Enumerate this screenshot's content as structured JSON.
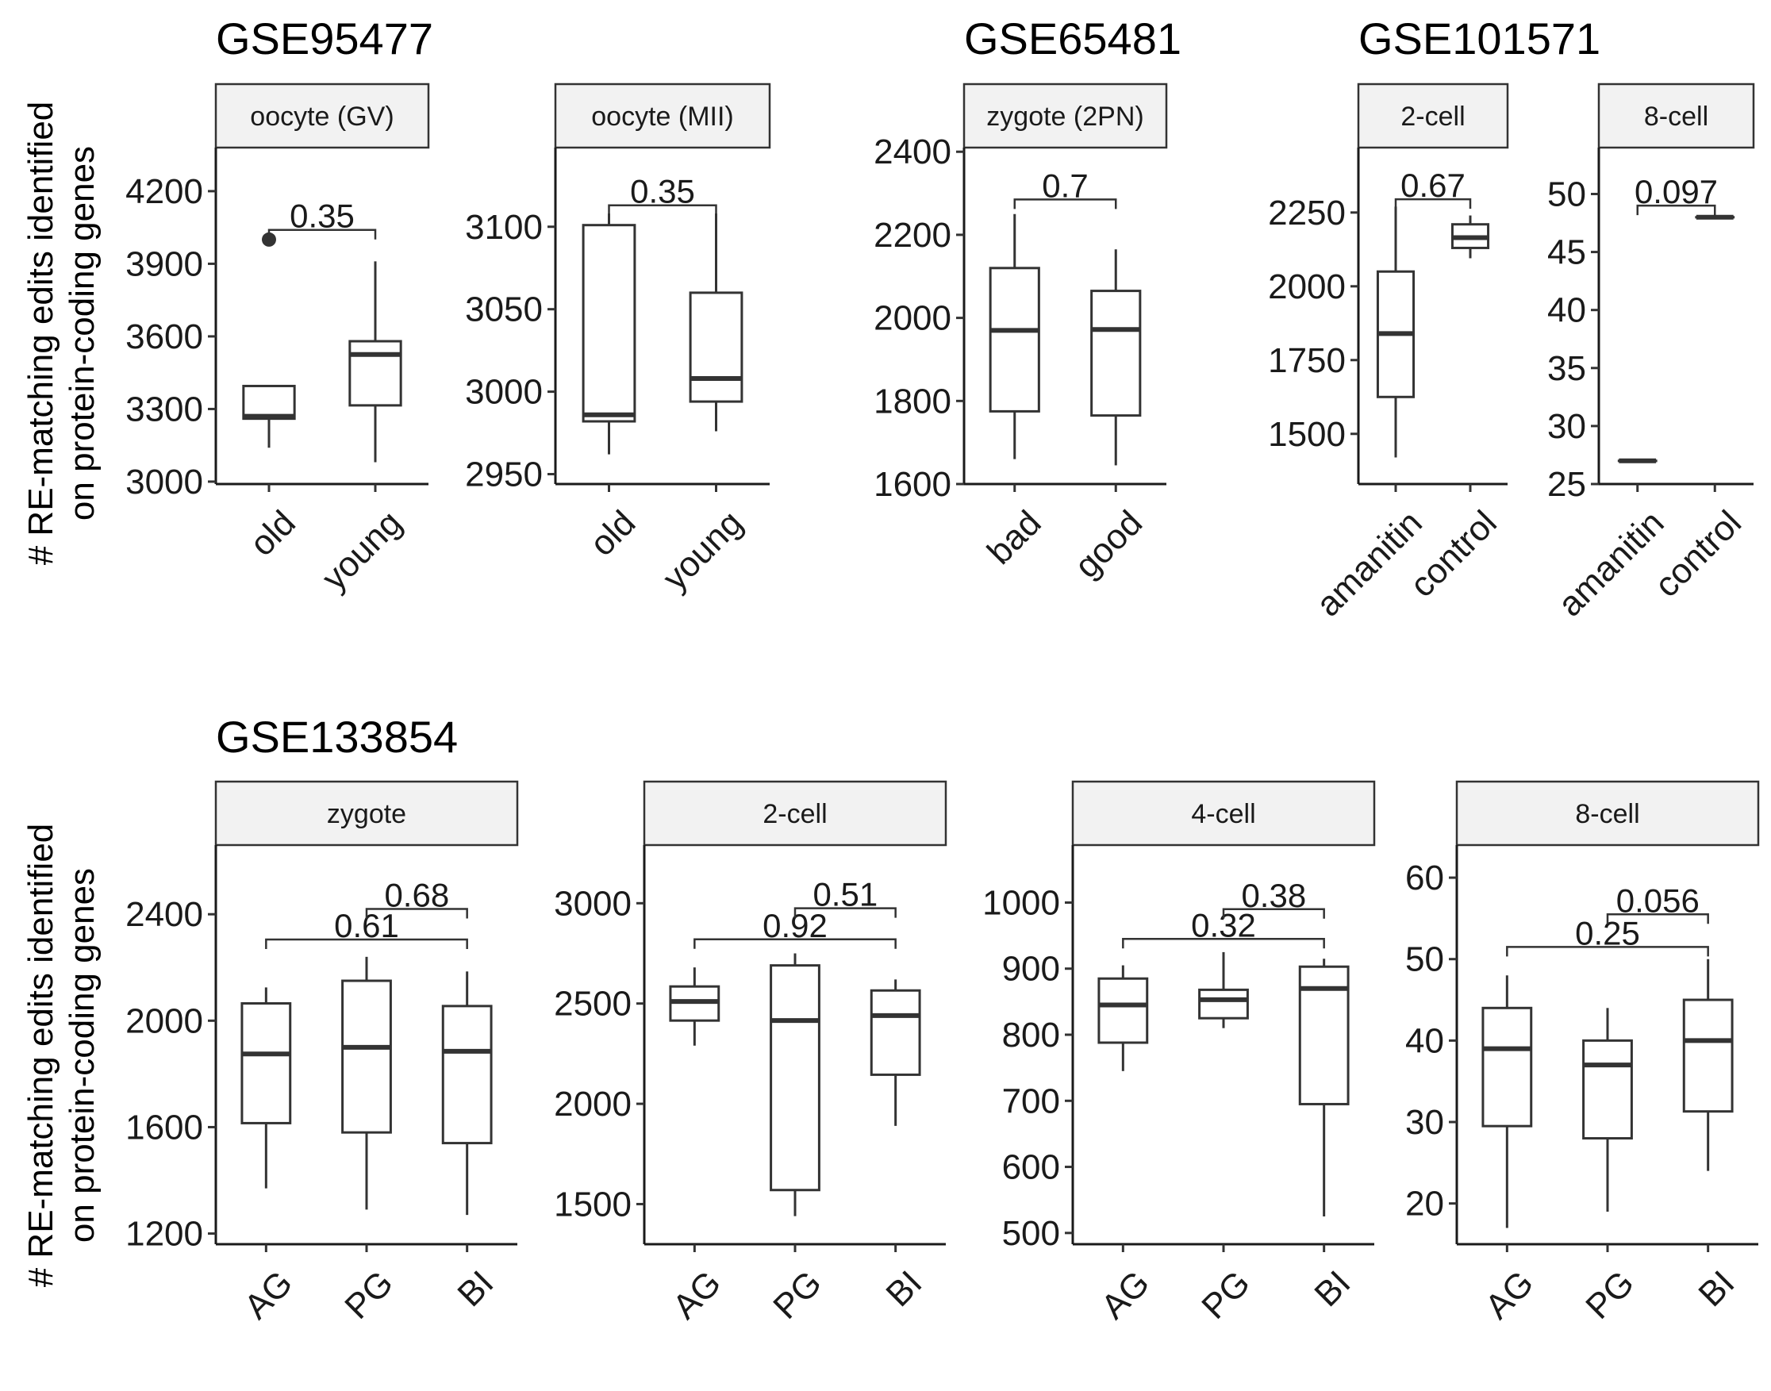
{
  "y_axis_label": {
    "line1": "# RE-matching edits identified",
    "line2": "on protein-coding genes"
  },
  "chart_data": [
    {
      "type": "box",
      "title": "GSE95477",
      "strip": "oocyte (GV)",
      "categories": [
        "old",
        "young"
      ],
      "ylim": [
        2990,
        4380
      ],
      "yticks": [
        3000,
        3300,
        3600,
        3900,
        4200
      ],
      "boxes": [
        {
          "min": 3140,
          "q1": 3260,
          "median": 3270,
          "q3": 3395,
          "max": 3395,
          "outliers": [
            4000
          ]
        },
        {
          "min": 3080,
          "q1": 3315,
          "median": 3525,
          "q3": 3580,
          "max": 3910,
          "outliers": []
        }
      ],
      "comparisons": [
        {
          "from": 0,
          "to": 1,
          "y": 4040,
          "label": "0.35"
        }
      ]
    },
    {
      "type": "box",
      "title": "",
      "strip": "oocyte (MII)",
      "categories": [
        "old",
        "young"
      ],
      "ylim": [
        2944,
        3148
      ],
      "yticks": [
        2950,
        3000,
        3050,
        3100
      ],
      "boxes": [
        {
          "min": 2962,
          "q1": 2982,
          "median": 2986,
          "q3": 3101,
          "max": 3108,
          "outliers": []
        },
        {
          "min": 2976,
          "q1": 2994,
          "median": 3008,
          "q3": 3060,
          "max": 3108,
          "outliers": []
        }
      ],
      "comparisons": [
        {
          "from": 0,
          "to": 1,
          "y": 3113,
          "label": "0.35"
        }
      ]
    },
    {
      "type": "box",
      "title": "GSE65481",
      "strip": "zygote (2PN)",
      "categories": [
        "bad",
        "good"
      ],
      "ylim": [
        1600,
        2410
      ],
      "yticks": [
        1600,
        1800,
        2000,
        2200,
        2400
      ],
      "boxes": [
        {
          "min": 1660,
          "q1": 1775,
          "median": 1970,
          "q3": 2120,
          "max": 2250,
          "outliers": []
        },
        {
          "min": 1645,
          "q1": 1765,
          "median": 1972,
          "q3": 2065,
          "max": 2165,
          "outliers": []
        }
      ],
      "comparisons": [
        {
          "from": 0,
          "to": 1,
          "y": 2285,
          "label": "0.7"
        }
      ]
    },
    {
      "type": "box",
      "title": "GSE101571",
      "strip": "2-cell",
      "categories": [
        "amanitin",
        "control"
      ],
      "ylim": [
        1330,
        2470
      ],
      "yticks": [
        1500,
        1750,
        2000,
        2250
      ],
      "boxes": [
        {
          "min": 1420,
          "q1": 1625,
          "median": 1840,
          "q3": 2050,
          "max": 2270,
          "outliers": []
        },
        {
          "min": 2095,
          "q1": 2130,
          "median": 2165,
          "q3": 2210,
          "max": 2240,
          "outliers": []
        }
      ],
      "comparisons": [
        {
          "from": 0,
          "to": 1,
          "y": 2295,
          "label": "0.67"
        }
      ]
    },
    {
      "type": "box",
      "title": "",
      "strip": "8-cell",
      "categories": [
        "amanitin",
        "control"
      ],
      "ylim": [
        25,
        54
      ],
      "yticks": [
        25,
        30,
        35,
        40,
        45,
        50
      ],
      "boxes": [
        {
          "min": 27,
          "q1": 27,
          "median": 27,
          "q3": 27,
          "max": 27,
          "outliers": []
        },
        {
          "min": 48,
          "q1": 48,
          "median": 48,
          "q3": 48,
          "max": 48,
          "outliers": []
        }
      ],
      "comparisons": [
        {
          "from": 0,
          "to": 1,
          "y": 49,
          "label": "0.097"
        }
      ]
    },
    {
      "type": "box",
      "title": "GSE133854",
      "strip": "zygote",
      "categories": [
        "AG",
        "PG",
        "BI"
      ],
      "ylim": [
        1160,
        2660
      ],
      "yticks": [
        1200,
        1600,
        2000,
        2400
      ],
      "boxes": [
        {
          "min": 1370,
          "q1": 1615,
          "median": 1875,
          "q3": 2065,
          "max": 2125,
          "outliers": []
        },
        {
          "min": 1290,
          "q1": 1580,
          "median": 1900,
          "q3": 2150,
          "max": 2240,
          "outliers": []
        },
        {
          "min": 1270,
          "q1": 1540,
          "median": 1885,
          "q3": 2055,
          "max": 2185,
          "outliers": []
        }
      ],
      "comparisons": [
        {
          "from": 0,
          "to": 2,
          "y": 2305,
          "label": "0.61"
        },
        {
          "from": 1,
          "to": 2,
          "y": 2420,
          "label": "0.68"
        }
      ]
    },
    {
      "type": "box",
      "title": "",
      "strip": "2-cell",
      "categories": [
        "AG",
        "PG",
        "BI"
      ],
      "ylim": [
        1300,
        3290
      ],
      "yticks": [
        1500,
        2000,
        2500,
        3000
      ],
      "boxes": [
        {
          "min": 2290,
          "q1": 2415,
          "median": 2510,
          "q3": 2585,
          "max": 2680,
          "outliers": []
        },
        {
          "min": 1440,
          "q1": 1570,
          "median": 2415,
          "q3": 2690,
          "max": 2750,
          "outliers": []
        },
        {
          "min": 1890,
          "q1": 2145,
          "median": 2440,
          "q3": 2565,
          "max": 2620,
          "outliers": []
        }
      ],
      "comparisons": [
        {
          "from": 0,
          "to": 2,
          "y": 2820,
          "label": "0.92"
        },
        {
          "from": 1,
          "to": 2,
          "y": 2975,
          "label": "0.51"
        }
      ]
    },
    {
      "type": "box",
      "title": "",
      "strip": "4-cell",
      "categories": [
        "AG",
        "PG",
        "BI"
      ],
      "ylim": [
        483,
        1087
      ],
      "yticks": [
        500,
        600,
        700,
        800,
        900,
        1000
      ],
      "boxes": [
        {
          "min": 745,
          "q1": 788,
          "median": 845,
          "q3": 885,
          "max": 905,
          "outliers": []
        },
        {
          "min": 810,
          "q1": 825,
          "median": 853,
          "q3": 868,
          "max": 925,
          "outliers": []
        },
        {
          "min": 525,
          "q1": 695,
          "median": 870,
          "q3": 903,
          "max": 915,
          "outliers": []
        }
      ],
      "comparisons": [
        {
          "from": 0,
          "to": 2,
          "y": 945,
          "label": "0.32"
        },
        {
          "from": 1,
          "to": 2,
          "y": 990,
          "label": "0.38"
        }
      ]
    },
    {
      "type": "box",
      "title": "",
      "strip": "8-cell",
      "categories": [
        "AG",
        "PG",
        "BI"
      ],
      "ylim": [
        15,
        64
      ],
      "yticks": [
        20,
        30,
        40,
        50,
        60
      ],
      "boxes": [
        {
          "min": 17,
          "q1": 29.5,
          "median": 39,
          "q3": 44,
          "max": 48,
          "outliers": []
        },
        {
          "min": 19,
          "q1": 28,
          "median": 37,
          "q3": 40,
          "max": 44,
          "outliers": []
        },
        {
          "min": 24,
          "q1": 31.3,
          "median": 40,
          "q3": 45,
          "max": 50,
          "outliers": []
        }
      ],
      "comparisons": [
        {
          "from": 0,
          "to": 2,
          "y": 51.5,
          "label": "0.25"
        },
        {
          "from": 1,
          "to": 2,
          "y": 55.5,
          "label": "0.056"
        }
      ]
    }
  ]
}
